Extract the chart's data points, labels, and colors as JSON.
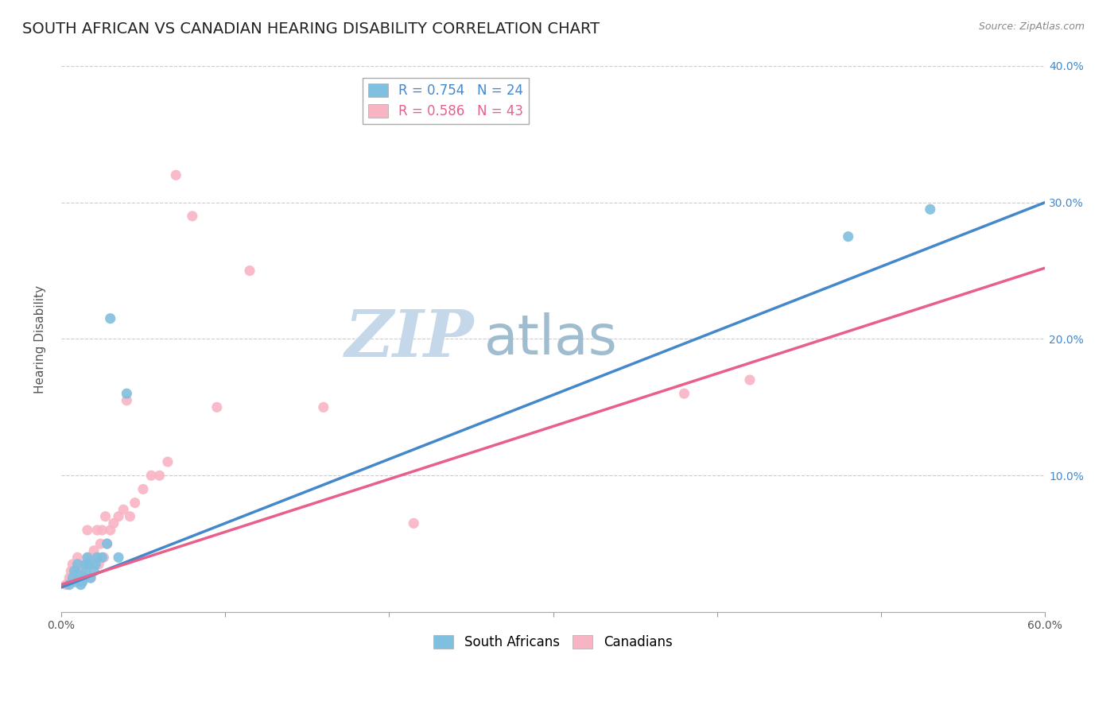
{
  "title": "SOUTH AFRICAN VS CANADIAN HEARING DISABILITY CORRELATION CHART",
  "source": "Source: ZipAtlas.com",
  "ylabel": "Hearing Disability",
  "xlabel": "",
  "xlim": [
    0.0,
    0.6
  ],
  "ylim": [
    0.0,
    0.4
  ],
  "xtick_vals": [
    0.0,
    0.1,
    0.2,
    0.3,
    0.4,
    0.5,
    0.6
  ],
  "xtick_labels": [
    "0.0%",
    "",
    "",
    "",
    "",
    "",
    "60.0%"
  ],
  "ytick_vals": [
    0.0,
    0.1,
    0.2,
    0.3,
    0.4
  ],
  "right_ytick_labels": [
    "",
    "10.0%",
    "20.0%",
    "30.0%",
    "40.0%"
  ],
  "blue_color": "#7fbfdf",
  "pink_color": "#f9b4c4",
  "blue_line_color": "#4488cc",
  "pink_line_color": "#e8608a",
  "legend_blue_label": "R = 0.754   N = 24",
  "legend_pink_label": "R = 0.586   N = 43",
  "sa_label": "South Africans",
  "can_label": "Canadians",
  "watermark_zip": "ZIP",
  "watermark_atlas": "atlas",
  "blue_scatter_x": [
    0.005,
    0.007,
    0.008,
    0.009,
    0.01,
    0.01,
    0.012,
    0.013,
    0.014,
    0.015,
    0.015,
    0.016,
    0.017,
    0.018,
    0.02,
    0.021,
    0.022,
    0.025,
    0.028,
    0.03,
    0.035,
    0.04,
    0.48,
    0.53
  ],
  "blue_scatter_y": [
    0.02,
    0.025,
    0.03,
    0.022,
    0.028,
    0.035,
    0.02,
    0.022,
    0.025,
    0.03,
    0.035,
    0.04,
    0.035,
    0.025,
    0.03,
    0.035,
    0.04,
    0.04,
    0.05,
    0.215,
    0.04,
    0.16,
    0.275,
    0.295
  ],
  "pink_scatter_x": [
    0.003,
    0.005,
    0.006,
    0.007,
    0.008,
    0.009,
    0.01,
    0.011,
    0.012,
    0.013,
    0.015,
    0.016,
    0.017,
    0.018,
    0.019,
    0.02,
    0.021,
    0.022,
    0.023,
    0.024,
    0.025,
    0.026,
    0.027,
    0.028,
    0.03,
    0.032,
    0.035,
    0.038,
    0.04,
    0.042,
    0.045,
    0.05,
    0.055,
    0.06,
    0.065,
    0.07,
    0.08,
    0.095,
    0.115,
    0.16,
    0.215,
    0.38,
    0.42
  ],
  "pink_scatter_y": [
    0.02,
    0.025,
    0.03,
    0.035,
    0.025,
    0.03,
    0.04,
    0.035,
    0.025,
    0.03,
    0.035,
    0.06,
    0.04,
    0.025,
    0.035,
    0.045,
    0.04,
    0.06,
    0.035,
    0.05,
    0.06,
    0.04,
    0.07,
    0.05,
    0.06,
    0.065,
    0.07,
    0.075,
    0.155,
    0.07,
    0.08,
    0.09,
    0.1,
    0.1,
    0.11,
    0.32,
    0.29,
    0.15,
    0.25,
    0.15,
    0.065,
    0.16,
    0.17
  ],
  "blue_line_x0": 0.0,
  "blue_line_y0": 0.018,
  "blue_line_x1": 0.6,
  "blue_line_y1": 0.3,
  "pink_line_x0": 0.0,
  "pink_line_y0": 0.02,
  "pink_line_x1": 0.6,
  "pink_line_y1": 0.252,
  "grid_color": "#cccccc",
  "bg_color": "#ffffff",
  "title_fontsize": 14,
  "axis_label_fontsize": 11,
  "tick_label_fontsize": 10,
  "legend_fontsize": 12,
  "watermark_fontsize_big": 60,
  "watermark_fontsize_small": 50,
  "watermark_color_zip": "#c5d8ea",
  "watermark_color_atlas": "#a0bdd0"
}
